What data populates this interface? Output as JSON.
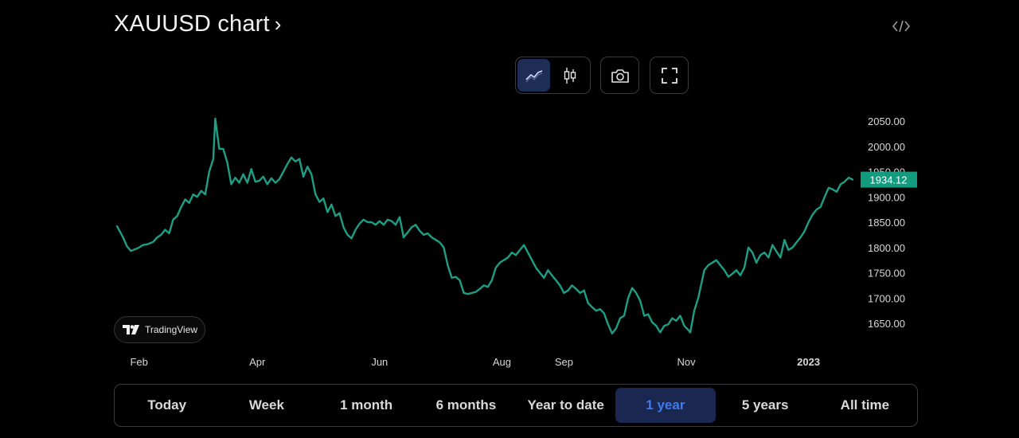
{
  "header": {
    "title": "XAUUSD chart",
    "title_chevron": "›"
  },
  "toolbar": {
    "style_buttons": [
      {
        "icon": "line-chart-icon",
        "active": true
      },
      {
        "icon": "candlestick-icon",
        "active": false
      }
    ],
    "screenshot_icon": "camera-icon",
    "fullscreen_icon": "fullscreen-icon",
    "embed_icon": "code-icon"
  },
  "badge": {
    "label": "TradingView"
  },
  "colors": {
    "line": "#1e9e85",
    "price_label_bg": "#139b7d",
    "background": "#000000",
    "axis_text": "#d8d8d8",
    "active_range_bg": "#1a2750",
    "active_range_text": "#3b7cf5"
  },
  "range": {
    "buttons": [
      {
        "label": "Today",
        "active": false
      },
      {
        "label": "Week",
        "active": false
      },
      {
        "label": "1 month",
        "active": false
      },
      {
        "label": "6 months",
        "active": false
      },
      {
        "label": "Year to date",
        "active": false
      },
      {
        "label": "1 year",
        "active": true
      },
      {
        "label": "5 years",
        "active": false
      },
      {
        "label": "All time",
        "active": false
      }
    ]
  },
  "chart_data": {
    "type": "line",
    "title": "XAUUSD chart",
    "xlabel": "",
    "ylabel": "",
    "grid": false,
    "legend": "none",
    "series": [
      {
        "points": [
          [
            "2022-01-21",
            1842
          ],
          [
            "2022-01-24",
            1820
          ],
          [
            "2022-01-26",
            1802
          ],
          [
            "2022-01-28",
            1793
          ],
          [
            "2022-02-01",
            1800
          ],
          [
            "2022-02-03",
            1805
          ],
          [
            "2022-02-05",
            1806
          ],
          [
            "2022-02-08",
            1811
          ],
          [
            "2022-02-10",
            1820
          ],
          [
            "2022-02-12",
            1825
          ],
          [
            "2022-02-14",
            1835
          ],
          [
            "2022-02-16",
            1828
          ],
          [
            "2022-02-18",
            1855
          ],
          [
            "2022-02-20",
            1862
          ],
          [
            "2022-02-22",
            1880
          ],
          [
            "2022-02-24",
            1895
          ],
          [
            "2022-02-26",
            1888
          ],
          [
            "2022-02-28",
            1905
          ],
          [
            "2022-03-02",
            1900
          ],
          [
            "2022-03-04",
            1912
          ],
          [
            "2022-03-06",
            1905
          ],
          [
            "2022-03-08",
            1950
          ],
          [
            "2022-03-10",
            1975
          ],
          [
            "2022-03-11",
            2055
          ],
          [
            "2022-03-13",
            1995
          ],
          [
            "2022-03-15",
            1995
          ],
          [
            "2022-03-17",
            1968
          ],
          [
            "2022-03-19",
            1925
          ],
          [
            "2022-03-21",
            1938
          ],
          [
            "2022-03-23",
            1928
          ],
          [
            "2022-03-25",
            1945
          ],
          [
            "2022-03-27",
            1928
          ],
          [
            "2022-03-29",
            1955
          ],
          [
            "2022-03-31",
            1930
          ],
          [
            "2022-04-02",
            1932
          ],
          [
            "2022-04-04",
            1940
          ],
          [
            "2022-04-06",
            1925
          ],
          [
            "2022-04-08",
            1937
          ],
          [
            "2022-04-10",
            1928
          ],
          [
            "2022-04-12",
            1935
          ],
          [
            "2022-04-14",
            1950
          ],
          [
            "2022-04-16",
            1965
          ],
          [
            "2022-04-18",
            1978
          ],
          [
            "2022-04-20",
            1970
          ],
          [
            "2022-04-22",
            1975
          ],
          [
            "2022-04-24",
            1940
          ],
          [
            "2022-04-26",
            1960
          ],
          [
            "2022-04-28",
            1945
          ],
          [
            "2022-04-30",
            1905
          ],
          [
            "2022-05-02",
            1890
          ],
          [
            "2022-05-04",
            1897
          ],
          [
            "2022-05-06",
            1870
          ],
          [
            "2022-05-08",
            1885
          ],
          [
            "2022-05-10",
            1862
          ],
          [
            "2022-05-12",
            1868
          ],
          [
            "2022-05-14",
            1840
          ],
          [
            "2022-05-16",
            1825
          ],
          [
            "2022-05-18",
            1818
          ],
          [
            "2022-05-20",
            1835
          ],
          [
            "2022-05-22",
            1847
          ],
          [
            "2022-05-24",
            1855
          ],
          [
            "2022-05-26",
            1850
          ],
          [
            "2022-05-28",
            1850
          ],
          [
            "2022-05-30",
            1845
          ],
          [
            "2022-06-01",
            1852
          ],
          [
            "2022-06-03",
            1845
          ],
          [
            "2022-06-05",
            1855
          ],
          [
            "2022-06-07",
            1852
          ],
          [
            "2022-06-09",
            1845
          ],
          [
            "2022-06-11",
            1860
          ],
          [
            "2022-06-13",
            1820
          ],
          [
            "2022-06-15",
            1830
          ],
          [
            "2022-06-17",
            1840
          ],
          [
            "2022-06-19",
            1845
          ],
          [
            "2022-06-21",
            1833
          ],
          [
            "2022-06-23",
            1825
          ],
          [
            "2022-06-25",
            1828
          ],
          [
            "2022-06-27",
            1820
          ],
          [
            "2022-06-29",
            1815
          ],
          [
            "2022-07-01",
            1810
          ],
          [
            "2022-07-03",
            1800
          ],
          [
            "2022-07-05",
            1765
          ],
          [
            "2022-07-07",
            1740
          ],
          [
            "2022-07-09",
            1742
          ],
          [
            "2022-07-11",
            1735
          ],
          [
            "2022-07-13",
            1710
          ],
          [
            "2022-07-15",
            1708
          ],
          [
            "2022-07-17",
            1710
          ],
          [
            "2022-07-19",
            1712
          ],
          [
            "2022-07-21",
            1718
          ],
          [
            "2022-07-23",
            1725
          ],
          [
            "2022-07-25",
            1722
          ],
          [
            "2022-07-27",
            1735
          ],
          [
            "2022-07-29",
            1760
          ],
          [
            "2022-07-31",
            1770
          ],
          [
            "2022-08-02",
            1775
          ],
          [
            "2022-08-04",
            1780
          ],
          [
            "2022-08-06",
            1790
          ],
          [
            "2022-08-08",
            1785
          ],
          [
            "2022-08-10",
            1795
          ],
          [
            "2022-08-12",
            1805
          ],
          [
            "2022-08-14",
            1790
          ],
          [
            "2022-08-16",
            1775
          ],
          [
            "2022-08-18",
            1760
          ],
          [
            "2022-08-20",
            1750
          ],
          [
            "2022-08-22",
            1740
          ],
          [
            "2022-08-24",
            1755
          ],
          [
            "2022-08-26",
            1745
          ],
          [
            "2022-08-28",
            1735
          ],
          [
            "2022-08-30",
            1725
          ],
          [
            "2022-09-01",
            1710
          ],
          [
            "2022-09-03",
            1715
          ],
          [
            "2022-09-05",
            1725
          ],
          [
            "2022-09-07",
            1718
          ],
          [
            "2022-09-09",
            1710
          ],
          [
            "2022-09-11",
            1715
          ],
          [
            "2022-09-13",
            1690
          ],
          [
            "2022-09-15",
            1682
          ],
          [
            "2022-09-17",
            1675
          ],
          [
            "2022-09-19",
            1678
          ],
          [
            "2022-09-21",
            1670
          ],
          [
            "2022-09-23",
            1648
          ],
          [
            "2022-09-25",
            1630
          ],
          [
            "2022-09-27",
            1640
          ],
          [
            "2022-09-29",
            1660
          ],
          [
            "2022-10-01",
            1665
          ],
          [
            "2022-10-03",
            1700
          ],
          [
            "2022-10-05",
            1720
          ],
          [
            "2022-10-07",
            1710
          ],
          [
            "2022-10-09",
            1695
          ],
          [
            "2022-10-11",
            1665
          ],
          [
            "2022-10-13",
            1668
          ],
          [
            "2022-10-15",
            1652
          ],
          [
            "2022-10-17",
            1645
          ],
          [
            "2022-10-19",
            1632
          ],
          [
            "2022-10-21",
            1645
          ],
          [
            "2022-10-23",
            1648
          ],
          [
            "2022-10-25",
            1660
          ],
          [
            "2022-10-27",
            1655
          ],
          [
            "2022-10-29",
            1665
          ],
          [
            "2022-10-31",
            1645
          ],
          [
            "2022-11-02",
            1637
          ],
          [
            "2022-11-03",
            1632
          ],
          [
            "2022-11-05",
            1675
          ],
          [
            "2022-11-07",
            1700
          ],
          [
            "2022-11-10",
            1755
          ],
          [
            "2022-11-12",
            1765
          ],
          [
            "2022-11-14",
            1770
          ],
          [
            "2022-11-16",
            1775
          ],
          [
            "2022-11-18",
            1765
          ],
          [
            "2022-11-20",
            1755
          ],
          [
            "2022-11-22",
            1742
          ],
          [
            "2022-11-24",
            1748
          ],
          [
            "2022-11-26",
            1755
          ],
          [
            "2022-11-28",
            1745
          ],
          [
            "2022-11-30",
            1760
          ],
          [
            "2022-12-02",
            1800
          ],
          [
            "2022-12-04",
            1790
          ],
          [
            "2022-12-06",
            1770
          ],
          [
            "2022-12-08",
            1785
          ],
          [
            "2022-12-10",
            1790
          ],
          [
            "2022-12-12",
            1780
          ],
          [
            "2022-12-14",
            1805
          ],
          [
            "2022-12-16",
            1792
          ],
          [
            "2022-12-18",
            1780
          ],
          [
            "2022-12-20",
            1815
          ],
          [
            "2022-12-22",
            1795
          ],
          [
            "2022-12-24",
            1800
          ],
          [
            "2022-12-26",
            1810
          ],
          [
            "2022-12-28",
            1820
          ],
          [
            "2022-12-30",
            1832
          ],
          [
            "2023-01-01",
            1850
          ],
          [
            "2023-01-03",
            1865
          ],
          [
            "2023-01-05",
            1875
          ],
          [
            "2023-01-07",
            1880
          ],
          [
            "2023-01-09",
            1900
          ],
          [
            "2023-01-11",
            1918
          ],
          [
            "2023-01-13",
            1915
          ],
          [
            "2023-01-15",
            1910
          ],
          [
            "2023-01-17",
            1925
          ],
          [
            "2023-01-19",
            1930
          ],
          [
            "2023-01-21",
            1938
          ],
          [
            "2023-01-23",
            1934.12
          ]
        ]
      }
    ],
    "x_ticks": [
      {
        "date": "2022-02-01",
        "label": "Feb"
      },
      {
        "date": "2022-04-01",
        "label": "Apr"
      },
      {
        "date": "2022-06-01",
        "label": "Jun"
      },
      {
        "date": "2022-08-01",
        "label": "Aug"
      },
      {
        "date": "2022-09-01",
        "label": "Sep"
      },
      {
        "date": "2022-11-01",
        "label": "Nov"
      },
      {
        "date": "2023-01-01",
        "label": "2023",
        "bold": true
      }
    ],
    "y_ticks": [
      {
        "value": 2050,
        "label": "2050.00"
      },
      {
        "value": 2000,
        "label": "2000.00"
      },
      {
        "value": 1950,
        "label": "1950.00"
      },
      {
        "value": 1900,
        "label": "1900.00"
      },
      {
        "value": 1850,
        "label": "1850.00"
      },
      {
        "value": 1800,
        "label": "1800.00"
      },
      {
        "value": 1750,
        "label": "1750.00"
      },
      {
        "value": 1700,
        "label": "1700.00"
      },
      {
        "value": 1650,
        "label": "1650.00"
      }
    ],
    "ylim": [
      1625,
      2065
    ],
    "xlim": [
      "2022-01-21",
      "2023-01-23"
    ],
    "last_price": {
      "value": 1934.12,
      "label": "1934.12"
    }
  }
}
